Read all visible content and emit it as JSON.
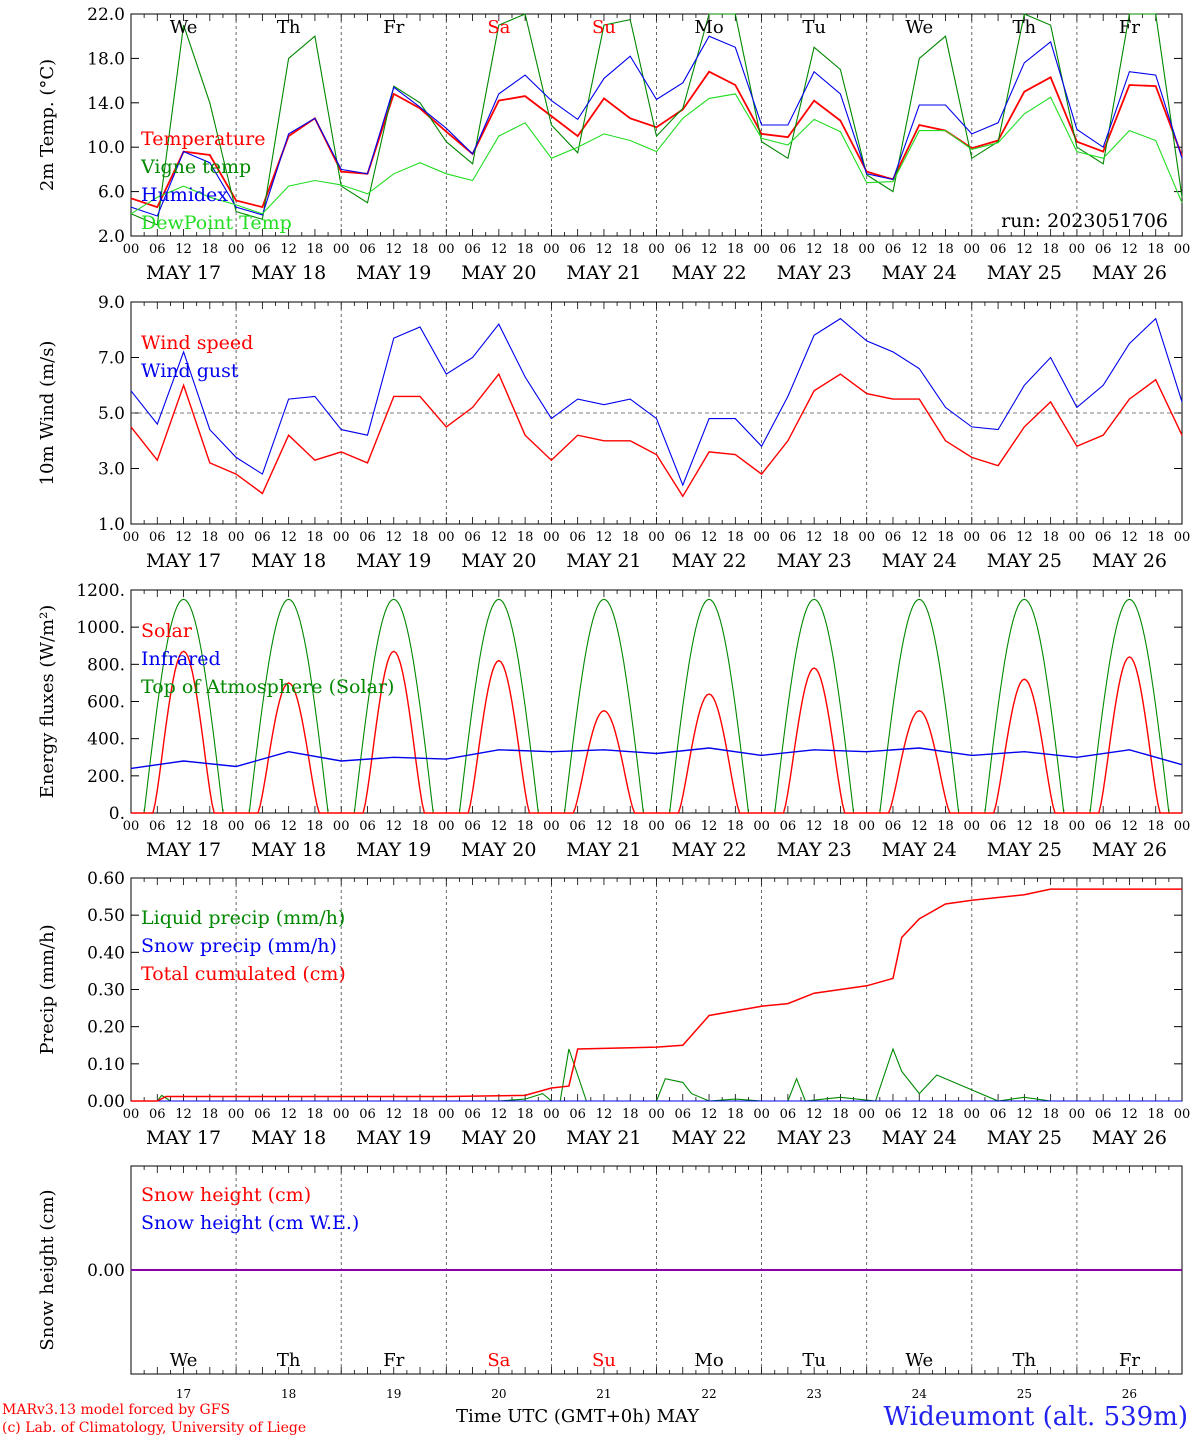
{
  "days": [
    "We",
    "Th",
    "Fr",
    "Sa",
    "Su",
    "Mo",
    "Tu",
    "We",
    "Th",
    "Fr"
  ],
  "weekend_days": [
    3,
    4
  ],
  "date_labels": [
    "MAY 17",
    "MAY 18",
    "MAY 19",
    "MAY 20",
    "MAY 21",
    "MAY 22",
    "MAY 23",
    "MAY 24",
    "MAY 25",
    "MAY 26"
  ],
  "hour_ticks": [
    "00",
    "06",
    "12",
    "18"
  ],
  "hour_end": "00",
  "bottom_dates": [
    "17",
    "18",
    "19",
    "20",
    "21",
    "22",
    "23",
    "24",
    "25",
    "26"
  ],
  "run_label": "run: 2023051706",
  "footer": {
    "model": "MARv3.13 model forced by GFS",
    "lab": "(c) Lab. of Climatology, University of Liege",
    "time_axis": "Time UTC (GMT+0h) MAY",
    "station": "Wideumont (alt. 539m)"
  },
  "colors": {
    "red": "#ff0000",
    "green": "#008800",
    "blue": "#0000ee",
    "lightgreen": "#22dd22",
    "purple": "#8800aa"
  },
  "chart_data": [
    {
      "type": "line",
      "ylabel": "2m Temp. (°C)",
      "ylim": [
        2.0,
        22.0
      ],
      "yticks": [
        "2.0",
        "6.0",
        "10.0",
        "14.0",
        "18.0",
        "22.0"
      ],
      "x": [
        0,
        6,
        12,
        18,
        24,
        30,
        36,
        42,
        48,
        54,
        60,
        66,
        72,
        78,
        84,
        90,
        96,
        102,
        108,
        114,
        120,
        126,
        132,
        138,
        144,
        150,
        156,
        162,
        168,
        174,
        180,
        186,
        192,
        198,
        204,
        210,
        216,
        222,
        228,
        234,
        240
      ],
      "series": [
        {
          "name": "Temperature",
          "color": "red",
          "values": [
            5.4,
            4.6,
            9.6,
            9.3,
            5.2,
            4.6,
            11.0,
            12.6,
            7.8,
            7.6,
            14.8,
            13.5,
            11.4,
            9.4,
            14.2,
            14.6,
            12.8,
            11.0,
            14.4,
            12.6,
            11.8,
            13.4,
            16.8,
            15.6,
            11.2,
            10.9,
            14.2,
            12.4,
            7.8,
            7.1,
            12.0,
            11.5,
            9.9,
            10.6,
            15.0,
            16.3,
            10.5,
            9.6,
            15.6,
            15.5,
            9.2
          ]
        },
        {
          "name": "Vigne temp",
          "color": "green",
          "values": [
            4.0,
            3.0,
            21.0,
            14.0,
            4.2,
            3.5,
            18.0,
            20.0,
            6.5,
            5.0,
            15.5,
            14.0,
            10.5,
            8.5,
            21.0,
            22.0,
            12.0,
            9.5,
            21.0,
            21.5,
            11.0,
            13.5,
            22.0,
            22.0,
            10.5,
            9.0,
            19.0,
            17.0,
            7.5,
            6.0,
            18.0,
            20.0,
            9.0,
            10.5,
            22.0,
            21.0,
            10.0,
            8.5,
            22.0,
            22.0,
            5.5
          ]
        },
        {
          "name": "Humidex",
          "color": "blue",
          "values": [
            4.6,
            3.8,
            9.6,
            8.6,
            4.6,
            3.9,
            11.2,
            12.6,
            8.0,
            7.6,
            15.4,
            13.6,
            11.7,
            9.4,
            14.8,
            16.5,
            14.2,
            12.5,
            16.2,
            18.2,
            14.3,
            15.8,
            20.0,
            19.0,
            12.0,
            12.0,
            16.8,
            14.8,
            7.6,
            7.1,
            13.8,
            13.8,
            11.2,
            12.2,
            17.6,
            19.5,
            11.6,
            10.0,
            16.8,
            16.5,
            9.0
          ]
        },
        {
          "name": "DewPoint Temp",
          "color": "lightgreen",
          "values": [
            4.0,
            5.5,
            6.5,
            5.5,
            4.8,
            4.0,
            6.5,
            7.0,
            6.6,
            5.8,
            7.6,
            8.6,
            7.6,
            7.0,
            11.0,
            12.2,
            9.0,
            10.0,
            11.2,
            10.6,
            9.6,
            12.6,
            14.4,
            14.8,
            10.8,
            10.2,
            12.5,
            11.4,
            6.8,
            6.9,
            11.5,
            11.5,
            9.8,
            10.4,
            13.0,
            14.5,
            9.6,
            9.0,
            11.5,
            10.6,
            5.0
          ]
        }
      ]
    },
    {
      "type": "line",
      "ylabel": "10m Wind (m/s)",
      "ylim": [
        1.0,
        9.0
      ],
      "yticks": [
        "1.0",
        "3.0",
        "5.0",
        "7.0",
        "9.0"
      ],
      "x": [
        0,
        6,
        12,
        18,
        24,
        30,
        36,
        42,
        48,
        54,
        60,
        66,
        72,
        78,
        84,
        90,
        96,
        102,
        108,
        114,
        120,
        126,
        132,
        138,
        144,
        150,
        156,
        162,
        168,
        174,
        180,
        186,
        192,
        198,
        204,
        210,
        216,
        222,
        228,
        234,
        240
      ],
      "series": [
        {
          "name": "Wind speed",
          "color": "red",
          "values": [
            4.5,
            3.3,
            6.0,
            3.2,
            2.8,
            2.1,
            4.2,
            3.3,
            3.6,
            3.2,
            5.6,
            5.6,
            4.5,
            5.2,
            6.4,
            4.2,
            3.3,
            4.2,
            4.0,
            4.0,
            3.5,
            2.0,
            3.6,
            3.5,
            2.8,
            4.0,
            5.8,
            6.4,
            5.7,
            5.5,
            5.5,
            4.0,
            3.4,
            3.1,
            4.5,
            5.4,
            3.8,
            4.2,
            5.5,
            6.2,
            4.2
          ]
        },
        {
          "name": "Wind gust",
          "color": "blue",
          "values": [
            5.8,
            4.6,
            7.2,
            4.4,
            3.4,
            2.8,
            5.5,
            5.6,
            4.4,
            4.2,
            7.7,
            8.1,
            6.4,
            7.0,
            8.2,
            6.3,
            4.8,
            5.5,
            5.3,
            5.5,
            4.8,
            2.4,
            4.8,
            4.8,
            3.8,
            5.6,
            7.8,
            8.4,
            7.6,
            7.2,
            6.6,
            5.2,
            4.5,
            4.4,
            6.0,
            7.0,
            5.2,
            6.0,
            7.5,
            8.4,
            5.4
          ]
        }
      ]
    },
    {
      "type": "line",
      "ylabel": "Energy fluxes (W/m²)",
      "ylim": [
        0,
        1200
      ],
      "yticks": [
        "0.",
        "200.",
        "400.",
        "600.",
        "800.",
        "1000.",
        "1200."
      ],
      "series": [
        {
          "name": "Solar",
          "color": "red",
          "day_peaks": [
            870,
            700,
            870,
            820,
            550,
            640,
            780,
            550,
            720,
            840
          ]
        },
        {
          "name": "Infrared",
          "color": "blue",
          "x": [
            0,
            12,
            24,
            36,
            48,
            60,
            72,
            84,
            96,
            108,
            120,
            132,
            144,
            156,
            168,
            180,
            192,
            204,
            216,
            228,
            240
          ],
          "values": [
            240,
            280,
            250,
            330,
            280,
            300,
            290,
            340,
            330,
            340,
            320,
            350,
            310,
            340,
            330,
            350,
            310,
            330,
            300,
            340,
            260
          ]
        },
        {
          "name": "Top of Atmosphere (Solar)",
          "color": "green",
          "day_peak": 1150
        }
      ]
    },
    {
      "type": "line",
      "ylabel": "Precip (mm/h)",
      "ylim": [
        0.0,
        0.6
      ],
      "yticks": [
        "0.00",
        "0.10",
        "0.20",
        "0.30",
        "0.40",
        "0.50",
        "0.60"
      ],
      "series": [
        {
          "name": "Liquid precip (mm/h)",
          "color": "green",
          "x": [
            0,
            6,
            7,
            9,
            72,
            84,
            90,
            94,
            96,
            98,
            100,
            104,
            120,
            122,
            126,
            128,
            132,
            138,
            144,
            150,
            152,
            154,
            162,
            170,
            174,
            176,
            180,
            184,
            198,
            204,
            210,
            240
          ],
          "values": [
            0,
            0,
            0.015,
            0,
            0,
            0,
            0.005,
            0.02,
            0,
            0,
            0.14,
            0,
            0,
            0.06,
            0.05,
            0.02,
            0,
            0.005,
            0,
            0,
            0.06,
            0,
            0.01,
            0,
            0.14,
            0.08,
            0.02,
            0.07,
            0,
            0.01,
            0,
            0
          ]
        },
        {
          "name": "Snow precip (mm/h)",
          "color": "blue",
          "x": [
            0,
            240
          ],
          "values": [
            0,
            0
          ]
        },
        {
          "name": "Total cumulated (cm)",
          "color": "red",
          "x": [
            0,
            6,
            8,
            72,
            90,
            96,
            100,
            102,
            120,
            126,
            132,
            144,
            150,
            156,
            162,
            168,
            174,
            176,
            180,
            186,
            192,
            204,
            210,
            240
          ],
          "values": [
            0,
            0,
            0.012,
            0.012,
            0.015,
            0.035,
            0.04,
            0.14,
            0.145,
            0.15,
            0.23,
            0.255,
            0.262,
            0.29,
            0.3,
            0.31,
            0.33,
            0.44,
            0.49,
            0.53,
            0.54,
            0.555,
            0.57,
            0.57
          ]
        }
      ]
    },
    {
      "type": "line",
      "ylabel": "Snow height (cm)",
      "yticks": [
        "0.00"
      ],
      "series": [
        {
          "name": "Snow height (cm)",
          "color": "red",
          "x": [
            0,
            240
          ],
          "values": [
            0,
            0
          ]
        },
        {
          "name": "Snow height (cm W.E.)",
          "color": "blue",
          "x": [
            0,
            240
          ],
          "values": [
            0,
            0
          ]
        }
      ]
    }
  ]
}
